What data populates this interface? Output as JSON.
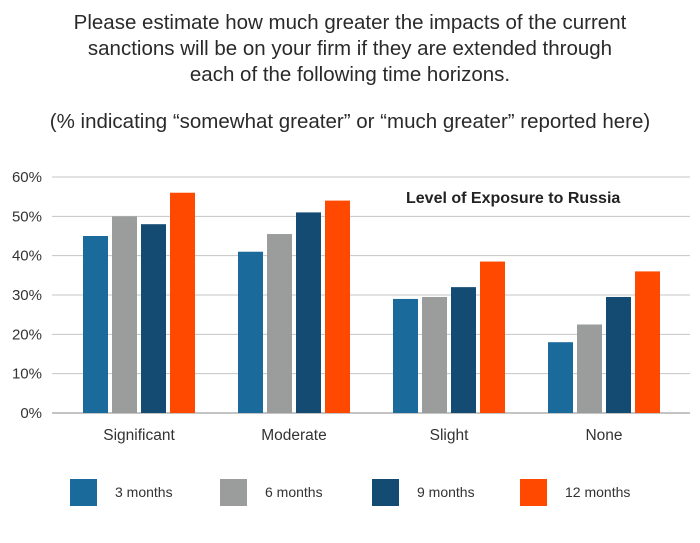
{
  "title_lines": [
    "Please estimate how much greater the impacts of the current",
    "sanctions will be on your firm if they are extended through",
    "each of the following time horizons."
  ],
  "subtitle": "(% indicating “somewhat greater” or “much greater” reported here)",
  "chart_data": {
    "type": "bar",
    "annotation": "Level of Exposure to Russia",
    "categories": [
      "Significant",
      "Moderate",
      "Slight",
      "None"
    ],
    "series": [
      {
        "name": "3 months",
        "color": "#1b6a9c",
        "values": [
          45,
          41,
          29,
          18
        ]
      },
      {
        "name": "6 months",
        "color": "#9a9d9c",
        "values": [
          50,
          45.5,
          29.5,
          22.5
        ]
      },
      {
        "name": "9 months",
        "color": "#134b73",
        "values": [
          48,
          51,
          32,
          29.5
        ]
      },
      {
        "name": "12 months",
        "color": "#ff4800",
        "values": [
          56,
          54,
          38.5,
          36
        ]
      }
    ],
    "ylim": [
      0,
      60
    ],
    "yticks": [
      0,
      10,
      20,
      30,
      40,
      50,
      60
    ],
    "ytick_labels": [
      "0%",
      "10%",
      "20%",
      "30%",
      "40%",
      "50%",
      "60%"
    ],
    "grid": true,
    "legend_position": "bottom"
  }
}
